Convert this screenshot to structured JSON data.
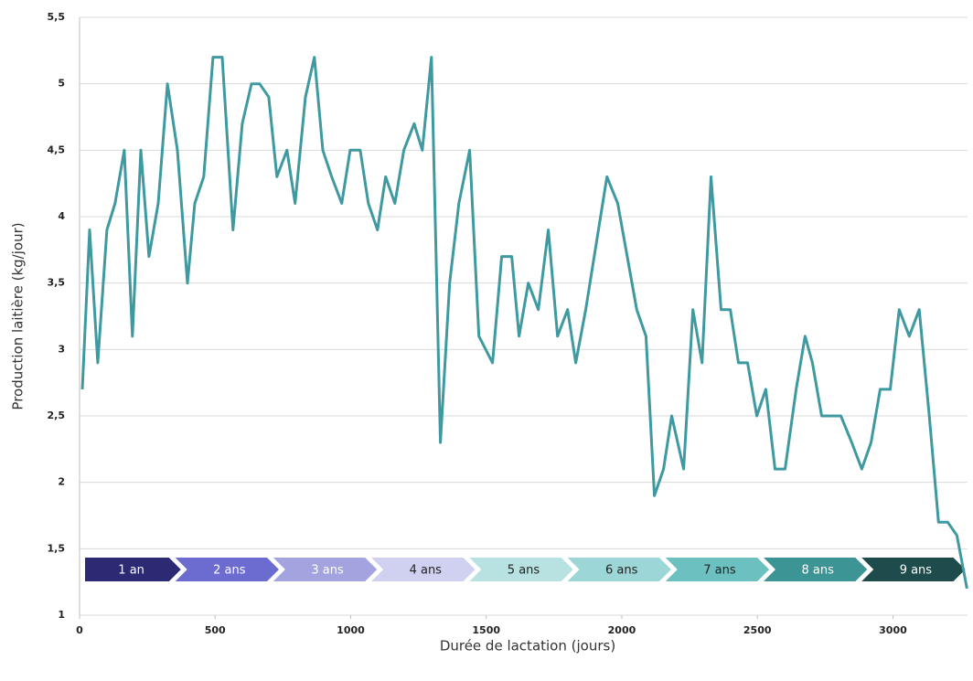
{
  "chart_data": {
    "type": "line",
    "x_label": "Durée de lactation (jours)",
    "y_label": "Production laitière (kg/jour)",
    "color": "#3e9aa0",
    "grid": true,
    "xlim": [
      0,
      3275
    ],
    "xticks": [
      0,
      500,
      1000,
      1500,
      2000,
      2500,
      3000
    ],
    "ylim": [
      1,
      5.5
    ],
    "yticks": [
      1,
      {
        "value": 1.5,
        "label": "1,5"
      },
      2,
      {
        "value": 2.5,
        "label": "2,5"
      },
      3,
      {
        "value": 3.5,
        "label": "3,5"
      },
      4,
      {
        "value": 4.5,
        "label": "4,5"
      },
      5,
      {
        "value": 5.5,
        "label": "5,5"
      }
    ],
    "x": [
      10,
      37,
      67,
      101,
      131,
      165,
      195,
      226,
      256,
      290,
      324,
      361,
      398,
      425,
      458,
      492,
      526,
      566,
      600,
      634,
      664,
      698,
      728,
      765,
      795,
      833,
      866,
      897,
      930,
      967,
      998,
      1035,
      1065,
      1099,
      1129,
      1163,
      1196,
      1234,
      1264,
      1298,
      1331,
      1365,
      1399,
      1439,
      1473,
      1523,
      1557,
      1594,
      1621,
      1655,
      1692,
      1729,
      1763,
      1800,
      1830,
      1867,
      1945,
      1985,
      2055,
      2089,
      2120,
      2154,
      2184,
      2228,
      2262,
      2296,
      2329,
      2366,
      2400,
      2430,
      2464,
      2498,
      2531,
      2565,
      2602,
      2643,
      2676,
      2703,
      2737,
      2808,
      2848,
      2885,
      2919,
      2953,
      2990,
      3023,
      3060,
      3097,
      3134,
      3168,
      3202,
      3236,
      3273
    ],
    "values": [
      2.7,
      3.9,
      2.9,
      3.9,
      4.1,
      4.5,
      3.1,
      4.5,
      3.7,
      4.1,
      5.0,
      4.5,
      3.5,
      4.1,
      4.3,
      5.2,
      5.2,
      3.9,
      4.7,
      5.0,
      5.0,
      4.9,
      4.3,
      4.5,
      4.1,
      4.9,
      5.2,
      4.5,
      4.3,
      4.1,
      4.5,
      4.5,
      4.1,
      3.9,
      4.3,
      4.1,
      4.5,
      4.7,
      4.5,
      5.2,
      2.3,
      3.5,
      4.1,
      4.5,
      3.1,
      2.9,
      3.7,
      3.7,
      3.1,
      3.5,
      3.3,
      3.9,
      3.1,
      3.3,
      2.9,
      3.3,
      4.3,
      4.1,
      3.3,
      3.1,
      1.9,
      2.1,
      2.5,
      2.1,
      3.3,
      2.9,
      4.3,
      3.3,
      3.3,
      2.9,
      2.9,
      2.5,
      2.7,
      2.1,
      2.1,
      2.7,
      3.1,
      2.9,
      2.5,
      2.5,
      2.3,
      2.1,
      2.3,
      2.7,
      2.7,
      3.3,
      3.1,
      3.3,
      2.5,
      1.7,
      1.7,
      1.6,
      1.2
    ],
    "periods": [
      {
        "label": "1 an",
        "color": "#2b2a72"
      },
      {
        "label": "2  ans",
        "color": "#6b6bd0"
      },
      {
        "label": "3 ans",
        "color": "#a3a3e0"
      },
      {
        "label": "4 ans",
        "color": "#d0d0f0"
      },
      {
        "label": "5 ans",
        "color": "#b8e2e2"
      },
      {
        "label": "6 ans",
        "color": "#9dd6d6"
      },
      {
        "label": "7 ans",
        "color": "#6dc0c0"
      },
      {
        "label": "8 ans",
        "color": "#3d9494"
      },
      {
        "label": "9 ans",
        "color": "#1e4b4b"
      }
    ]
  }
}
